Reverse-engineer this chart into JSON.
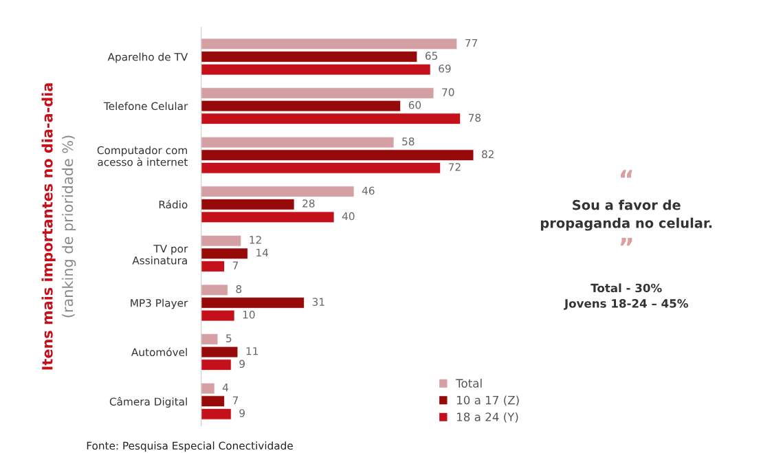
{
  "chart_data": {
    "type": "bar",
    "orientation": "horizontal",
    "categories": [
      "Aparelho de TV",
      "Telefone Celular",
      "Computador com\nacesso à internet",
      "Rádio",
      "TV por\nAssinatura",
      "MP3 Player",
      "Automóvel",
      "Câmera Digital"
    ],
    "series": [
      {
        "name": "Total",
        "color": "#d4a0a4",
        "values": [
          77,
          70,
          58,
          46,
          12,
          8,
          5,
          4
        ]
      },
      {
        "name": "10 a 17 (Z)",
        "color": "#960a0a",
        "values": [
          65,
          60,
          82,
          28,
          14,
          31,
          11,
          7
        ]
      },
      {
        "name": "18 a 24 (Y)",
        "color": "#c4101a",
        "values": [
          69,
          78,
          72,
          40,
          7,
          10,
          9,
          9
        ]
      }
    ],
    "data_labels": true,
    "legend": "bottom right",
    "grid": false,
    "ylabel": "Itens mais importantes no dia-a-dia\n(ranking de prioridade %)",
    "annotations": [
      "“",
      "Sou a favor de\npropaganda no celular.",
      "”",
      "Total - 30%\nJovens 18-24 – 45%",
      "Fonte: Pesquisa Especial Conectividade"
    ]
  }
}
